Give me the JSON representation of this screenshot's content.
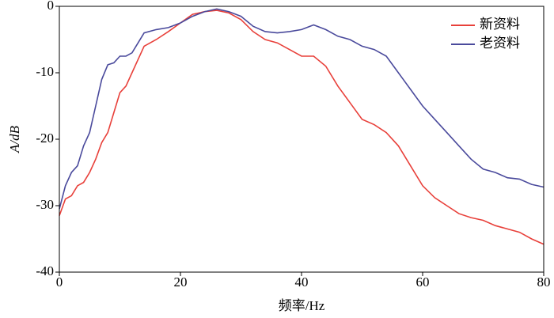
{
  "chart_data": {
    "type": "line",
    "xlabel": "频率/Hz",
    "ylabel": "A/dB",
    "x": [
      0,
      1,
      2,
      3,
      4,
      5,
      6,
      7,
      8,
      9,
      10,
      11,
      12,
      13,
      14,
      16,
      18,
      20,
      22,
      24,
      26,
      28,
      30,
      32,
      34,
      36,
      38,
      40,
      42,
      44,
      46,
      48,
      50,
      52,
      54,
      56,
      58,
      60,
      62,
      64,
      66,
      68,
      70,
      72,
      74,
      76,
      78,
      80
    ],
    "series": [
      {
        "name": "新资料",
        "color": "#e8403a",
        "values": [
          -31.5,
          -29,
          -28.5,
          -27,
          -26.5,
          -25,
          -23,
          -20.5,
          -19,
          -16,
          -13,
          -12,
          -10,
          -8,
          -6,
          -5,
          -3.8,
          -2.5,
          -1.2,
          -0.8,
          -0.6,
          -1,
          -2,
          -3.8,
          -5,
          -5.5,
          -6.5,
          -7.5,
          -7.5,
          -9,
          -12,
          -14.5,
          -17,
          -17.8,
          -19,
          -21,
          -24,
          -27,
          -28.8,
          -30,
          -31.2,
          -31.8,
          -32.2,
          -33,
          -33.5,
          -34,
          -35,
          -35.8
        ]
      },
      {
        "name": "老资料",
        "color": "#4a4a9c",
        "values": [
          -30.5,
          -27,
          -25,
          -24,
          -21,
          -19,
          -15,
          -11,
          -8.8,
          -8.5,
          -7.5,
          -7.5,
          -7,
          -5.5,
          -4,
          -3.5,
          -3.2,
          -2.5,
          -1.5,
          -0.8,
          -0.4,
          -0.8,
          -1.5,
          -3,
          -3.8,
          -4,
          -3.8,
          -3.5,
          -2.8,
          -3.5,
          -4.5,
          -5,
          -6,
          -6.5,
          -7.5,
          -10,
          -12.5,
          -15,
          -17,
          -19,
          -21,
          -23,
          -24.5,
          -25,
          -25.8,
          -26,
          -26.8,
          -27.2
        ]
      }
    ],
    "xlim": [
      0,
      80
    ],
    "xticks": [
      0,
      20,
      40,
      60,
      80
    ],
    "ylim": [
      -40,
      0
    ],
    "yticks": [
      -40,
      -30,
      -20,
      -10,
      0
    ],
    "legend": "upper right"
  }
}
